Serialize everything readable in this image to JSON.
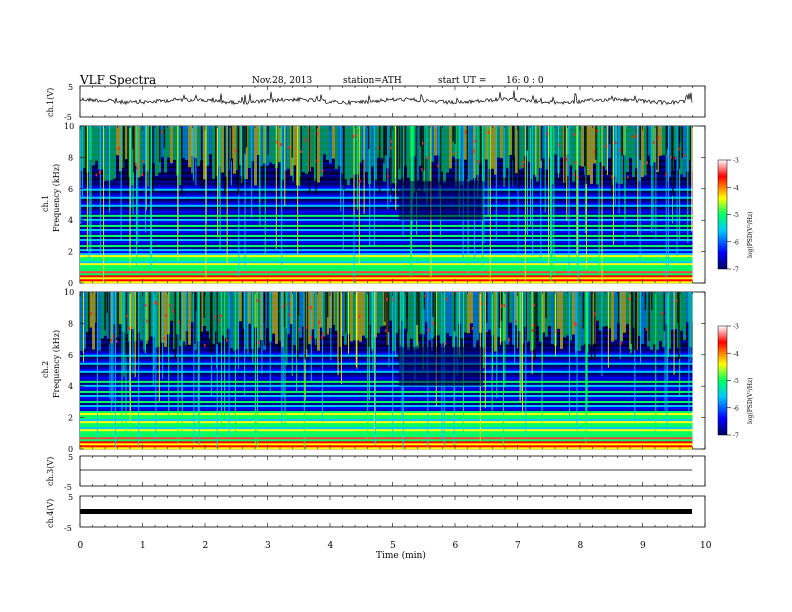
{
  "header": {
    "title": "VLF  Spectra",
    "date": "Nov.28, 2013",
    "station": "station=ATH",
    "start_label": "start  UT  =",
    "start_time": "16: 0  : 0"
  },
  "colorbar": {
    "label": "log(PSD(V²/Hz)",
    "tick_labels": [
      "-3",
      "-4",
      "-5",
      "-6",
      "-7"
    ]
  },
  "chart_data": [
    {
      "type": "line",
      "panel": "ch1-waveform",
      "ylabel": "ch.1(V)",
      "ylim": [
        -5,
        5
      ],
      "tick_labels": [
        "5",
        "-5"
      ],
      "x_range_min": [
        0,
        10
      ],
      "data_extent_min": [
        0,
        9.8
      ],
      "series": [
        {
          "values_approx": "noisy trace centred near 0 V, amplitude about 1 V"
        }
      ]
    },
    {
      "type": "heatmap",
      "panel": "ch1-spectrogram",
      "ylabel": "Frequency  (kHz)",
      "channel_label": "ch.1",
      "ylim": [
        0,
        10
      ],
      "tick_labels": [
        "0",
        "2",
        "4",
        "6",
        "8",
        "10"
      ],
      "color_scale": {
        "min": -7,
        "max": -3,
        "colors": [
          "#000060",
          "#0000ff",
          "#00c8ff",
          "#00ff64",
          "#ffff00",
          "#ff0000",
          "#ffffff"
        ]
      }
    },
    {
      "type": "heatmap",
      "panel": "ch2-spectrogram",
      "ylabel": "Frequency  (kHz)",
      "channel_label": "ch.2",
      "ylim": [
        0,
        10
      ],
      "tick_labels": [
        "0",
        "2",
        "4",
        "6",
        "8",
        "10"
      ],
      "color_scale": {
        "min": -7,
        "max": -3,
        "colors": [
          "#000060",
          "#0000ff",
          "#00c8ff",
          "#00ff64",
          "#ffff00",
          "#ff0000",
          "#ffffff"
        ]
      }
    },
    {
      "type": "line",
      "panel": "ch3-waveform",
      "ylabel": "ch.3(V)",
      "ylim": [
        -5,
        5
      ],
      "tick_labels": [
        "5",
        "-5"
      ],
      "series": [
        {
          "values_approx": "flat line near 0 V"
        }
      ]
    },
    {
      "type": "line",
      "panel": "ch4-waveform",
      "ylabel": "ch.4(V)",
      "ylim": [
        -5,
        5
      ],
      "tick_labels": [
        "5",
        "-5"
      ],
      "series": [
        {
          "values_approx": "thick dense band near 0 V"
        }
      ]
    }
  ],
  "x_axis": {
    "label": "Time  (min)",
    "range": [
      0,
      10
    ],
    "tick_labels": [
      "0",
      "1",
      "2",
      "3",
      "4",
      "5",
      "6",
      "7",
      "8",
      "9",
      "10"
    ]
  }
}
